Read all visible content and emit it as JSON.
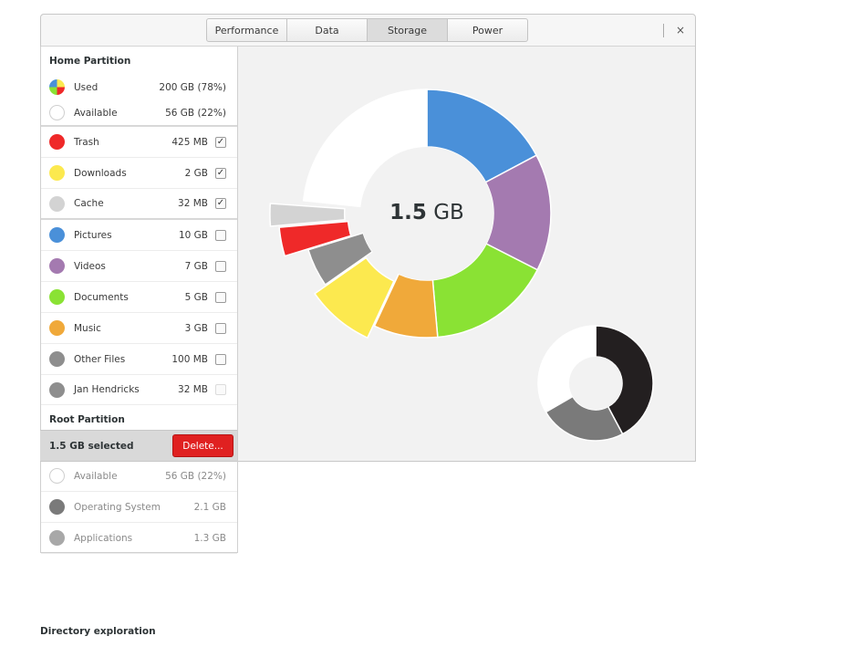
{
  "header": {
    "tabs": [
      {
        "label": "Performance"
      },
      {
        "label": "Data"
      },
      {
        "label": "Storage",
        "active": true
      },
      {
        "label": "Power"
      }
    ],
    "close_label": "×"
  },
  "sidebar": {
    "home_title": "Home Partition",
    "home_rows": [
      {
        "label": "Used",
        "size": "200 GB (78%)",
        "color": "used",
        "check": "none"
      },
      {
        "label": "Available",
        "size": "56 GB (22%)",
        "color": "#ffffff",
        "check": "none"
      },
      {
        "label": "Trash",
        "size": "425 MB",
        "color": "#ef2929",
        "check": "checked"
      },
      {
        "label": "Downloads",
        "size": "2 GB",
        "color": "#fce94f",
        "check": "checked"
      },
      {
        "label": "Cache",
        "size": "32 MB",
        "color": "#d3d3d3",
        "check": "checked"
      },
      {
        "label": "Pictures",
        "size": "10 GB",
        "color": "#4a90d9",
        "check": "unchecked"
      },
      {
        "label": "Videos",
        "size": "7 GB",
        "color": "#a47ab0",
        "check": "unchecked"
      },
      {
        "label": "Documents",
        "size": "5 GB",
        "color": "#8ae234",
        "check": "unchecked"
      },
      {
        "label": "Music",
        "size": "3 GB",
        "color": "#f0a93a",
        "check": "unchecked"
      },
      {
        "label": "Other Files",
        "size": "100 MB",
        "color": "#8e8e8e",
        "check": "unchecked"
      },
      {
        "label": "Jan Hendricks",
        "size": "32 MB",
        "color": "#8e8e8e",
        "check": "faded"
      }
    ],
    "root_title": "Root Partition",
    "root_rows": [
      {
        "label": "Available",
        "size": "56 GB (22%)",
        "color": "#ffffff"
      },
      {
        "label": "Operating System",
        "size": "2.1 GB",
        "color": "#7a7a7a"
      },
      {
        "label": "Applications",
        "size": "1.3 GB",
        "color": "#a8a8a8"
      }
    ]
  },
  "action_bar": {
    "selected_text": "1.5 GB selected",
    "delete_label": "Delete..."
  },
  "chart_data": {
    "type": "pie",
    "center_value": "1.5",
    "center_unit": "GB",
    "main_ring": [
      {
        "name": "Pictures",
        "value": 10,
        "color": "#4a90d9"
      },
      {
        "name": "Videos",
        "value": 7,
        "color": "#a47ab0"
      },
      {
        "name": "Documents",
        "value": 5,
        "color": "#8ae234"
      },
      {
        "name": "Music",
        "value": 3,
        "color": "#f0a93a"
      },
      {
        "name": "Downloads",
        "value": 2,
        "color": "#fce94f"
      },
      {
        "name": "Other Files",
        "value": 0.1,
        "color": "#8e8e8e"
      },
      {
        "name": "Trash",
        "value": 0.425,
        "color": "#ef2929"
      },
      {
        "name": "Cache",
        "value": 0.032,
        "color": "#d3d3d3"
      },
      {
        "name": "Available",
        "value": 56,
        "color": "#ffffff"
      }
    ],
    "root_ring": [
      {
        "name": "Operating System",
        "value": 2.1,
        "color": "#231f20"
      },
      {
        "name": "Applications",
        "value": 1.3,
        "color": "#7a7a7a"
      },
      {
        "name": "Available",
        "value": 56,
        "color": "#ffffff"
      }
    ]
  },
  "caption": "Directory exploration"
}
